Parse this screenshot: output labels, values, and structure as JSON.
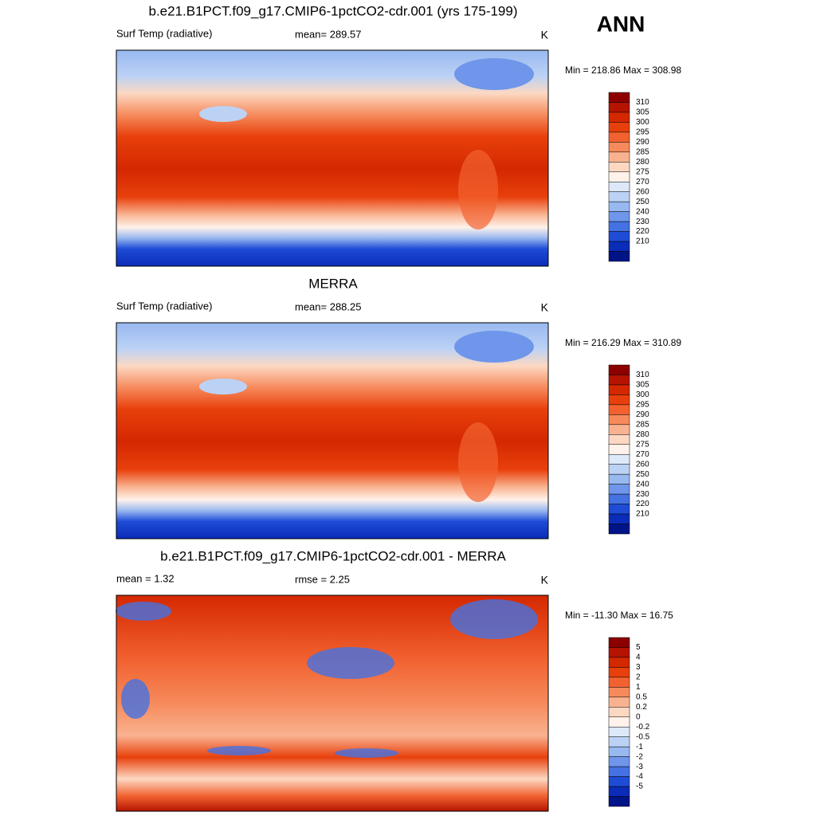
{
  "header": {
    "season": "ANN"
  },
  "panels": [
    {
      "title": "b.e21.B1PCT.f09_g17.CMIP6-1pctCO2-cdr.001 (yrs 175-199)",
      "left_label": "Surf Temp (radiative)",
      "center_label": "mean= 289.57",
      "units": "K",
      "min_max": "Min = 218.86 Max = 308.98",
      "colorbar": {
        "labels": [
          "310",
          "305",
          "300",
          "295",
          "290",
          "285",
          "280",
          "275",
          "270",
          "260",
          "250",
          "240",
          "230",
          "220",
          "210"
        ],
        "colors": [
          "#8c0000",
          "#b41400",
          "#d42800",
          "#e8400c",
          "#f26230",
          "#f68a5c",
          "#f9b290",
          "#fcd8c2",
          "#fff2ea",
          "#dde9f9",
          "#bcd2f5",
          "#98b8f0",
          "#6f96ea",
          "#4572e2",
          "#1e4cd6",
          "#0a2cb8",
          "#001488"
        ]
      }
    },
    {
      "title": "MERRA",
      "left_label": "Surf Temp (radiative)",
      "center_label": "mean= 288.25",
      "units": "K",
      "min_max": "Min = 216.29 Max = 310.89",
      "colorbar": {
        "labels": [
          "310",
          "305",
          "300",
          "295",
          "290",
          "285",
          "280",
          "275",
          "270",
          "260",
          "250",
          "240",
          "230",
          "220",
          "210"
        ],
        "colors": [
          "#8c0000",
          "#b41400",
          "#d42800",
          "#e8400c",
          "#f26230",
          "#f68a5c",
          "#f9b290",
          "#fcd8c2",
          "#fff2ea",
          "#dde9f9",
          "#bcd2f5",
          "#98b8f0",
          "#6f96ea",
          "#4572e2",
          "#1e4cd6",
          "#0a2cb8",
          "#001488"
        ]
      }
    },
    {
      "title": "b.e21.B1PCT.f09_g17.CMIP6-1pctCO2-cdr.001 - MERRA",
      "left_label": "mean =   1.32",
      "center_label": "rmse =   2.25",
      "units": "K",
      "min_max": "Min = -11.30 Max =  16.75",
      "colorbar": {
        "labels": [
          "5",
          "4",
          "3",
          "2",
          "1",
          "0.5",
          "0.2",
          "0",
          "-0.2",
          "-0.5",
          "-1",
          "-2",
          "-3",
          "-4",
          "-5"
        ],
        "colors": [
          "#8c0000",
          "#b41400",
          "#d42800",
          "#e8400c",
          "#f26230",
          "#f68a5c",
          "#f9b290",
          "#fcd8c2",
          "#fff2ea",
          "#dde9f9",
          "#bcd2f5",
          "#98b8f0",
          "#6f96ea",
          "#4572e2",
          "#1e4cd6",
          "#0a2cb8",
          "#001488"
        ]
      }
    }
  ]
}
